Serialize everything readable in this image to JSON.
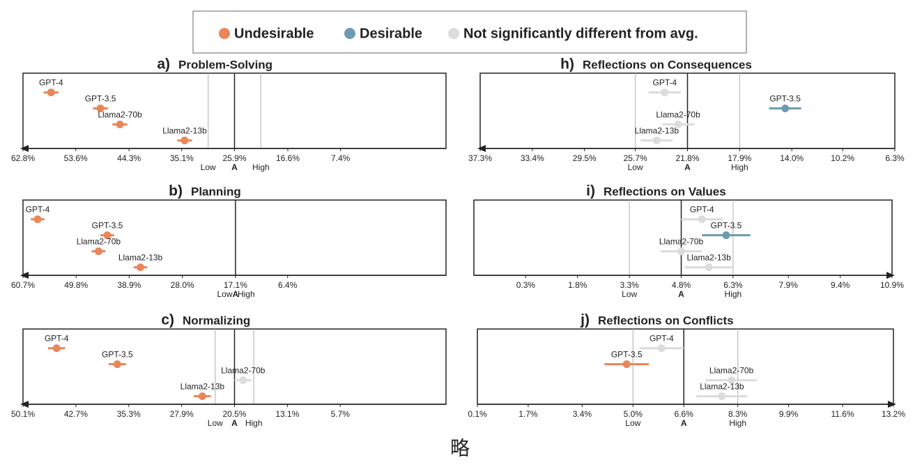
{
  "legend": [
    {
      "name": "Undesirable",
      "color": "#e8875a"
    },
    {
      "name": "Desirable",
      "color": "#6e9bb3"
    },
    {
      "name": "Not significantly different from avg.",
      "color": "#dcdcdc"
    }
  ],
  "caption": "略",
  "chart_data": [
    {
      "type": "dot",
      "label": "a)",
      "title": "Problem-Solving",
      "categories": [
        "GPT-4",
        "GPT-3.5",
        "Llama2-70b",
        "Llama2-13b"
      ],
      "values": [
        57.9,
        49.3,
        45.9,
        34.6
      ],
      "errors": [
        1.3,
        1.3,
        1.3,
        1.3
      ],
      "colors": [
        "#e8875a",
        "#e8875a",
        "#e8875a",
        "#e8875a"
      ],
      "xlim": [
        62.8,
        -11.0
      ],
      "xticks": [
        {
          "value": 62.8,
          "label": "62.8%"
        },
        {
          "value": 53.6,
          "label": "53.6%"
        },
        {
          "value": 44.3,
          "label": "44.3%"
        },
        {
          "value": 35.1,
          "label": "35.1%"
        },
        {
          "value": 25.9,
          "label": "25.9%"
        },
        {
          "value": 16.6,
          "label": "16.6%"
        },
        {
          "value": 7.4,
          "label": "7.4%"
        }
      ],
      "reference": {
        "value": 25.9,
        "label": "A"
      },
      "low": {
        "value": 30.5,
        "label": "Low"
      },
      "high": {
        "value": 21.3,
        "label": "High"
      },
      "bound_lines": true
    },
    {
      "type": "dot",
      "label": "b)",
      "title": "Planning",
      "categories": [
        "GPT-4",
        "GPT-3.5",
        "Llama2-70b",
        "Llama2-13b"
      ],
      "values": [
        57.7,
        43.4,
        45.2,
        36.6
      ],
      "errors": [
        1.4,
        1.4,
        1.4,
        1.4
      ],
      "colors": [
        "#e8875a",
        "#e8875a",
        "#e8875a",
        "#e8875a"
      ],
      "xlim": [
        60.7,
        -26.1
      ],
      "xticks": [
        {
          "value": 60.7,
          "label": "60.7%"
        },
        {
          "value": 49.8,
          "label": "49.8%"
        },
        {
          "value": 38.9,
          "label": "38.9%"
        },
        {
          "value": 28.0,
          "label": "28.0%"
        },
        {
          "value": 17.1,
          "label": "17.1%"
        },
        {
          "value": 6.4,
          "label": "6.4%"
        }
      ],
      "reference": {
        "value": 17.1,
        "label": "A"
      },
      "low": {
        "value": 19.3,
        "label": "Low"
      },
      "high": {
        "value": 14.9,
        "label": "High"
      },
      "bound_lines": false
    },
    {
      "type": "dot",
      "label": "c)",
      "title": "Normalizing",
      "categories": [
        "GPT-4",
        "GPT-3.5",
        "Llama2-70b",
        "Llama2-13b"
      ],
      "values": [
        45.4,
        36.9,
        19.3,
        25.0
      ],
      "errors": [
        1.2,
        1.2,
        1.2,
        1.2
      ],
      "colors": [
        "#e8875a",
        "#e8875a",
        "#dcdcdc",
        "#e8875a"
      ],
      "xlim": [
        50.1,
        -9.1
      ],
      "xticks": [
        {
          "value": 50.1,
          "label": "50.1%"
        },
        {
          "value": 42.7,
          "label": "42.7%"
        },
        {
          "value": 35.3,
          "label": "35.3%"
        },
        {
          "value": 27.9,
          "label": "27.9%"
        },
        {
          "value": 20.5,
          "label": "20.5%"
        },
        {
          "value": 13.1,
          "label": "13.1%"
        },
        {
          "value": 5.7,
          "label": "5.7%"
        }
      ],
      "reference": {
        "value": 20.5,
        "label": "A"
      },
      "low": {
        "value": 23.2,
        "label": "Low"
      },
      "high": {
        "value": 17.8,
        "label": "High"
      },
      "bound_lines": true
    },
    {
      "type": "dot",
      "label": "h)",
      "title": "Reflections on Consequences",
      "categories": [
        "GPT-4",
        "GPT-3.5",
        "Llama2-70b",
        "Llama2-13b"
      ],
      "values": [
        23.5,
        14.5,
        22.5,
        24.1
      ],
      "errors": [
        1.2,
        1.2,
        1.2,
        1.2
      ],
      "colors": [
        "#dcdcdc",
        "#6e9bb3",
        "#dcdcdc",
        "#dcdcdc"
      ],
      "xlim": [
        37.3,
        6.3
      ],
      "xticks": [
        {
          "value": 37.3,
          "label": "37.3%"
        },
        {
          "value": 33.4,
          "label": "33.4%"
        },
        {
          "value": 29.5,
          "label": "29.5%"
        },
        {
          "value": 25.7,
          "label": "25.7%"
        },
        {
          "value": 21.8,
          "label": "21.8%"
        },
        {
          "value": 17.9,
          "label": "17.9%"
        },
        {
          "value": 14.0,
          "label": "14.0%"
        },
        {
          "value": 10.2,
          "label": "10.2%"
        },
        {
          "value": 6.3,
          "label": "6.3%"
        }
      ],
      "reference": {
        "value": 21.8,
        "label": "A"
      },
      "low": {
        "value": 25.7,
        "label": "Low"
      },
      "high": {
        "value": 17.9,
        "label": "High"
      },
      "bound_lines": true
    },
    {
      "type": "dot",
      "label": "i)",
      "title": "Reflections on Values",
      "categories": [
        "GPT-4",
        "GPT-3.5",
        "Llama2-70b",
        "Llama2-13b"
      ],
      "values": [
        5.4,
        6.1,
        4.8,
        5.6
      ],
      "errors": [
        0.6,
        0.7,
        0.6,
        0.7
      ],
      "colors": [
        "#dcdcdc",
        "#6e9bb3",
        "#dcdcdc",
        "#dcdcdc"
      ],
      "xlim": [
        -1.2,
        10.9
      ],
      "xticks": [
        {
          "value": 0.3,
          "label": "0.3%"
        },
        {
          "value": 1.8,
          "label": "1.8%"
        },
        {
          "value": 3.3,
          "label": "3.3%"
        },
        {
          "value": 4.8,
          "label": "4.8%"
        },
        {
          "value": 6.3,
          "label": "6.3%"
        },
        {
          "value": 7.9,
          "label": "7.9%"
        },
        {
          "value": 9.4,
          "label": "9.4%"
        },
        {
          "value": 10.9,
          "label": "10.9%"
        }
      ],
      "reference": {
        "value": 4.8,
        "label": "A"
      },
      "low": {
        "value": 3.3,
        "label": "Low"
      },
      "high": {
        "value": 6.3,
        "label": "High"
      },
      "bound_lines": true
    },
    {
      "type": "dot",
      "label": "j)",
      "title": "Reflections on Conflicts",
      "categories": [
        "GPT-4",
        "GPT-3.5",
        "Llama2-70b",
        "Llama2-13b"
      ],
      "values": [
        5.9,
        4.8,
        8.1,
        7.8
      ],
      "errors": [
        0.7,
        0.7,
        0.8,
        0.8
      ],
      "colors": [
        "#dcdcdc",
        "#e8875a",
        "#dcdcdc",
        "#dcdcdc"
      ],
      "xlim": [
        0.1,
        13.2
      ],
      "xticks": [
        {
          "value": 0.1,
          "label": "0.1%"
        },
        {
          "value": 1.7,
          "label": "1.7%"
        },
        {
          "value": 3.4,
          "label": "3.4%"
        },
        {
          "value": 5.0,
          "label": "5.0%"
        },
        {
          "value": 6.6,
          "label": "6.6%"
        },
        {
          "value": 8.3,
          "label": "8.3%"
        },
        {
          "value": 9.9,
          "label": "9.9%"
        },
        {
          "value": 11.6,
          "label": "11.6%"
        },
        {
          "value": 13.2,
          "label": "13.2%"
        }
      ],
      "reference": {
        "value": 6.6,
        "label": "A"
      },
      "low": {
        "value": 5.0,
        "label": "Low"
      },
      "high": {
        "value": 8.3,
        "label": "High"
      },
      "bound_lines": true
    }
  ]
}
